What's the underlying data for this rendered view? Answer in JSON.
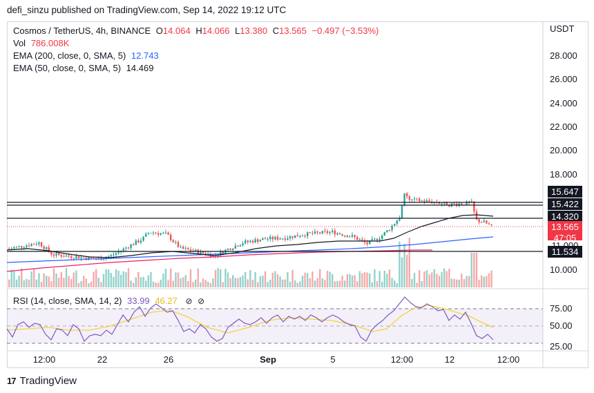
{
  "header": {
    "publisher": "defi_sinzu published on TradingView.com, Sep 14, 2022 19:12 UTC"
  },
  "legend": {
    "symbol": "Cosmos / TetherUS, 4h, BINANCE",
    "o_label": "O",
    "o": "14.064",
    "h_label": "H",
    "h": "14.066",
    "l_label": "L",
    "l": "13.380",
    "c_label": "C",
    "c": "13.565",
    "change": "−0.497 (−3.53%)",
    "vol_label": "Vol",
    "vol": "786.008K",
    "ema200_label": "EMA (200, close, 0, SMA, 5)",
    "ema200": "12.743",
    "ema50_label": "EMA (50, close, 0, SMA, 5)",
    "ema50": "14.469",
    "rsi_label": "RSI (14, close, SMA, 14, 2)",
    "rsi": "33.99",
    "rsi_ma": "46.27",
    "eye1": "⊘",
    "eye2": "⊘"
  },
  "price_axis": {
    "currency": "USDT",
    "ticks": [
      "28.000",
      "26.000",
      "24.000",
      "22.000",
      "20.000",
      "18.000",
      "10.000"
    ]
  },
  "price_tags": {
    "level1": "15.647",
    "level2": "15.422",
    "level3": "14.320",
    "last": "13.565",
    "countdown": "47:05",
    "hidden": "11.000",
    "level4": "11.534"
  },
  "rsi_axis": {
    "ticks": [
      "75.00",
      "50.00",
      "25.00"
    ]
  },
  "time_axis": {
    "ticks": [
      "12:00",
      "22",
      "26",
      "Sep",
      "5",
      "12:00",
      "12",
      "12:00"
    ]
  },
  "footer": {
    "brand": "TradingView",
    "logo": "17"
  },
  "colors": {
    "up": "#26a69a",
    "down": "#ef5350",
    "ema200": "#2962ff",
    "ema50": "#131722",
    "rsi": "#7e57c2",
    "rsi_ma": "#f5d33a",
    "ma_red": "#e91e63",
    "tag_dark": "#131722",
    "tag_red": "#f23645"
  },
  "chart_data": {
    "type": "candlestick",
    "symbol": "Cosmos / TetherUS",
    "interval": "4h",
    "y_axis_visible_ticks": [
      10,
      18,
      20,
      22,
      24,
      26,
      28
    ],
    "horizontal_levels": [
      15.647,
      15.422,
      14.32,
      11.534
    ],
    "last_price": 13.565,
    "ema200": 12.743,
    "ema50": 14.469,
    "rsi": {
      "value": 33.99,
      "ma": 46.27,
      "bands": [
        75,
        50,
        25
      ]
    }
  }
}
